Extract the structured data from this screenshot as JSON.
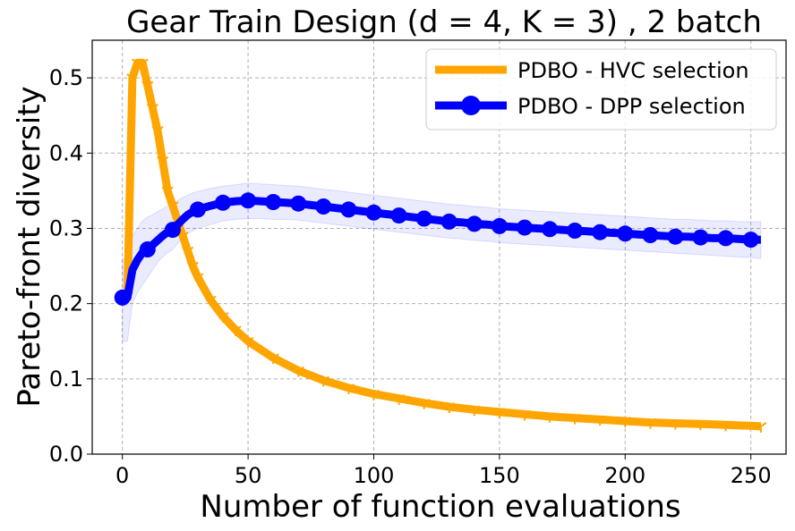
{
  "chart_data": {
    "type": "line",
    "title": "Gear Train Design (d = 4, K = 3) , 2 batch",
    "xlabel": "Number of function evaluations",
    "ylabel": "Pareto-front diversity",
    "xlim": [
      -12,
      264
    ],
    "ylim": [
      0.0,
      0.55
    ],
    "xticks": [
      0,
      50,
      100,
      150,
      200,
      250
    ],
    "yticks": [
      0.0,
      0.1,
      0.2,
      0.3,
      0.4,
      0.5
    ],
    "xtick_labels": [
      "0",
      "50",
      "100",
      "150",
      "200",
      "250"
    ],
    "ytick_labels": [
      "0.0",
      "0.1",
      "0.2",
      "0.3",
      "0.4",
      "0.5"
    ],
    "grid": true,
    "legend_position": "top-right",
    "series": [
      {
        "name": "PDBO - HVC selection",
        "color": "#FFA500",
        "marker": "tri-down",
        "x": [
          0,
          2,
          4,
          6,
          8,
          10,
          12,
          14,
          16,
          18,
          20,
          22,
          24,
          26,
          28,
          30,
          35,
          40,
          45,
          50,
          60,
          70,
          80,
          90,
          100,
          110,
          120,
          130,
          140,
          150,
          160,
          170,
          180,
          190,
          200,
          210,
          220,
          230,
          240,
          254
        ],
        "values": [
          0.21,
          0.21,
          0.5,
          0.52,
          0.52,
          0.49,
          0.46,
          0.43,
          0.39,
          0.35,
          0.33,
          0.31,
          0.29,
          0.27,
          0.25,
          0.235,
          0.205,
          0.183,
          0.165,
          0.15,
          0.128,
          0.111,
          0.098,
          0.088,
          0.08,
          0.074,
          0.068,
          0.063,
          0.059,
          0.056,
          0.053,
          0.05,
          0.048,
          0.046,
          0.044,
          0.042,
          0.041,
          0.04,
          0.039,
          0.037
        ]
      },
      {
        "name": "PDBO - DPP selection",
        "color": "#0000FF",
        "marker": "circle",
        "x": [
          0,
          2,
          4,
          6,
          8,
          10,
          12,
          14,
          16,
          18,
          20,
          22,
          24,
          26,
          28,
          30,
          35,
          40,
          45,
          50,
          55,
          60,
          65,
          70,
          75,
          80,
          85,
          90,
          95,
          100,
          105,
          110,
          115,
          120,
          125,
          130,
          135,
          140,
          145,
          150,
          155,
          160,
          165,
          170,
          175,
          180,
          185,
          190,
          195,
          200,
          205,
          210,
          215,
          220,
          225,
          230,
          235,
          240,
          245,
          250,
          254
        ],
        "values": [
          0.208,
          0.208,
          0.245,
          0.258,
          0.268,
          0.272,
          0.278,
          0.284,
          0.29,
          0.295,
          0.298,
          0.305,
          0.312,
          0.318,
          0.322,
          0.325,
          0.33,
          0.334,
          0.336,
          0.337,
          0.336,
          0.335,
          0.334,
          0.333,
          0.331,
          0.329,
          0.327,
          0.325,
          0.323,
          0.321,
          0.319,
          0.317,
          0.315,
          0.313,
          0.311,
          0.309,
          0.308,
          0.306,
          0.305,
          0.303,
          0.302,
          0.301,
          0.3,
          0.299,
          0.298,
          0.297,
          0.296,
          0.295,
          0.294,
          0.293,
          0.292,
          0.291,
          0.29,
          0.289,
          0.289,
          0.288,
          0.287,
          0.287,
          0.286,
          0.285,
          0.285
        ],
        "band_lower": [
          0.15,
          0.15,
          0.2,
          0.215,
          0.225,
          0.235,
          0.245,
          0.255,
          0.262,
          0.268,
          0.272,
          0.28,
          0.287,
          0.293,
          0.297,
          0.3,
          0.305,
          0.31,
          0.312,
          0.313,
          0.313,
          0.312,
          0.312,
          0.311,
          0.309,
          0.307,
          0.305,
          0.303,
          0.301,
          0.299,
          0.297,
          0.295,
          0.293,
          0.291,
          0.289,
          0.287,
          0.286,
          0.284,
          0.283,
          0.281,
          0.28,
          0.279,
          0.278,
          0.277,
          0.276,
          0.275,
          0.274,
          0.273,
          0.272,
          0.271,
          0.27,
          0.269,
          0.268,
          0.267,
          0.266,
          0.265,
          0.264,
          0.263,
          0.262,
          0.261,
          0.26
        ],
        "band_upper": [
          0.26,
          0.26,
          0.29,
          0.3,
          0.31,
          0.315,
          0.318,
          0.322,
          0.326,
          0.33,
          0.333,
          0.337,
          0.341,
          0.344,
          0.347,
          0.349,
          0.353,
          0.356,
          0.358,
          0.36,
          0.359,
          0.358,
          0.357,
          0.356,
          0.354,
          0.352,
          0.35,
          0.348,
          0.346,
          0.344,
          0.342,
          0.34,
          0.338,
          0.336,
          0.334,
          0.332,
          0.331,
          0.329,
          0.328,
          0.326,
          0.325,
          0.324,
          0.323,
          0.322,
          0.321,
          0.32,
          0.319,
          0.318,
          0.317,
          0.316,
          0.315,
          0.314,
          0.313,
          0.312,
          0.312,
          0.311,
          0.31,
          0.31,
          0.309,
          0.309,
          0.309
        ]
      }
    ]
  }
}
